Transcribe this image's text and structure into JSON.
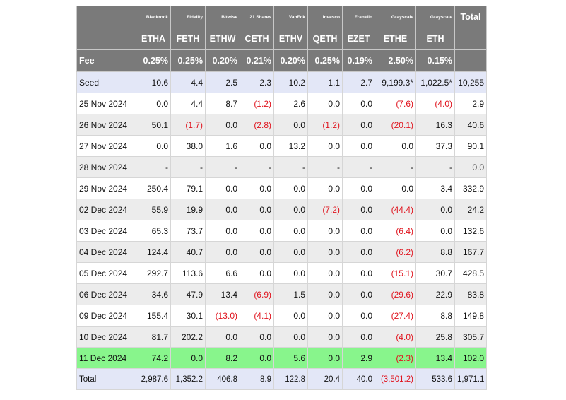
{
  "issuers": [
    "Blackrock",
    "Fidelity",
    "Bitwise",
    "21 Shares",
    "VanEck",
    "Invesco",
    "Franklin",
    "Grayscale",
    "Grayscale"
  ],
  "total_header": "Total",
  "tickers": [
    "ETHA",
    "FETH",
    "ETHW",
    "CETH",
    "ETHV",
    "QETH",
    "EZET",
    "ETHE",
    "ETH"
  ],
  "fee_label": "Fee",
  "fees": [
    "0.25%",
    "0.25%",
    "0.20%",
    "0.21%",
    "0.20%",
    "0.25%",
    "0.19%",
    "2.50%",
    "0.15%"
  ],
  "rows": [
    {
      "label": "Seed",
      "values": [
        "10.6",
        "4.4",
        "2.5",
        "2.3",
        "10.2",
        "1.1",
        "2.7",
        "9,199.3*",
        "1,022.5*"
      ],
      "total": "10,255"
    },
    {
      "label": "25 Nov 2024",
      "values": [
        "0.0",
        "4.4",
        "8.7",
        "(1.2)",
        "2.6",
        "0.0",
        "0.0",
        "(7.6)",
        "(4.0)"
      ],
      "total": "2.9"
    },
    {
      "label": "26 Nov 2024",
      "values": [
        "50.1",
        "(1.7)",
        "0.0",
        "(2.8)",
        "0.0",
        "(1.2)",
        "0.0",
        "(20.1)",
        "16.3"
      ],
      "total": "40.6"
    },
    {
      "label": "27 Nov 2024",
      "values": [
        "0.0",
        "38.0",
        "1.6",
        "0.0",
        "13.2",
        "0.0",
        "0.0",
        "0.0",
        "37.3"
      ],
      "total": "90.1"
    },
    {
      "label": "28 Nov 2024",
      "values": [
        "-",
        "-",
        "-",
        "-",
        "-",
        "-",
        "-",
        "-",
        "-"
      ],
      "total": "0.0"
    },
    {
      "label": "29 Nov 2024",
      "values": [
        "250.4",
        "79.1",
        "0.0",
        "0.0",
        "0.0",
        "0.0",
        "0.0",
        "0.0",
        "3.4"
      ],
      "total": "332.9"
    },
    {
      "label": "02 Dec 2024",
      "values": [
        "55.9",
        "19.9",
        "0.0",
        "0.0",
        "0.0",
        "(7.2)",
        "0.0",
        "(44.4)",
        "0.0"
      ],
      "total": "24.2"
    },
    {
      "label": "03 Dec 2024",
      "values": [
        "65.3",
        "73.7",
        "0.0",
        "0.0",
        "0.0",
        "0.0",
        "0.0",
        "(6.4)",
        "0.0"
      ],
      "total": "132.6"
    },
    {
      "label": "04 Dec 2024",
      "values": [
        "124.4",
        "40.7",
        "0.0",
        "0.0",
        "0.0",
        "0.0",
        "0.0",
        "(6.2)",
        "8.8"
      ],
      "total": "167.7"
    },
    {
      "label": "05 Dec 2024",
      "values": [
        "292.7",
        "113.6",
        "6.6",
        "0.0",
        "0.0",
        "0.0",
        "0.0",
        "(15.1)",
        "30.7"
      ],
      "total": "428.5"
    },
    {
      "label": "06 Dec 2024",
      "values": [
        "34.6",
        "47.9",
        "13.4",
        "(6.9)",
        "1.5",
        "0.0",
        "0.0",
        "(29.6)",
        "22.9"
      ],
      "total": "83.8"
    },
    {
      "label": "09 Dec 2024",
      "values": [
        "155.4",
        "30.1",
        "(13.0)",
        "(4.1)",
        "0.0",
        "0.0",
        "0.0",
        "(27.4)",
        "8.8"
      ],
      "total": "149.8"
    },
    {
      "label": "10 Dec 2024",
      "values": [
        "81.7",
        "202.2",
        "0.0",
        "0.0",
        "0.0",
        "0.0",
        "0.0",
        "(4.0)",
        "25.8"
      ],
      "total": "305.7"
    },
    {
      "label": "11 Dec 2024",
      "values": [
        "74.2",
        "0.0",
        "8.2",
        "0.0",
        "5.6",
        "0.0",
        "2.9",
        "(2.3)",
        "13.4"
      ],
      "total": "102.0"
    },
    {
      "label": "Total",
      "values": [
        "2,987.6",
        "1,352.2",
        "406.8",
        "8.9",
        "122.8",
        "20.4",
        "40.0",
        "(3,501.2)",
        "533.6"
      ],
      "total": "1,971.1"
    }
  ],
  "colors": {
    "header_bg": "#7a7a7a",
    "seed_total_bg": "#e3e7f7",
    "alt_row_bg": "#ececec",
    "highlight_row_bg": "#88f58c",
    "negative_text": "#e0141e"
  }
}
